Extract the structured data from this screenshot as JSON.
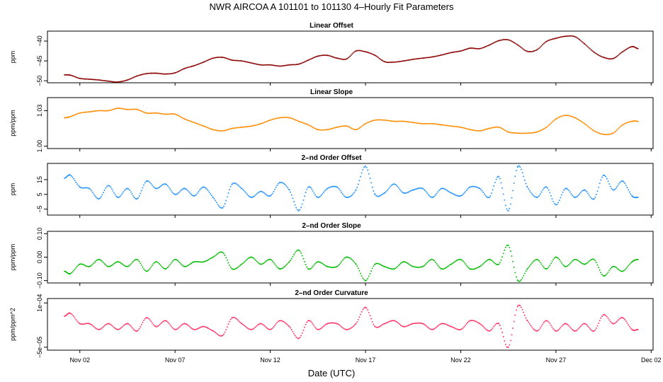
{
  "chart_data": {
    "type": "line",
    "title": "NWR   AIRCOA A   101101 to 101130   4–Hourly Fit Parameters",
    "xlabel": "Date (UTC)",
    "x_ticks": [
      "Nov 02",
      "Nov 07",
      "Nov 12",
      "Nov 17",
      "Nov 22",
      "Nov 27",
      "Dec 02"
    ],
    "x_tick_days": [
      2,
      7,
      12,
      17,
      22,
      27,
      32
    ],
    "xlim": [
      0.3,
      32.1
    ],
    "x_days": [
      1.2,
      1.5,
      2,
      2.5,
      3,
      3.5,
      4,
      4.5,
      5,
      5.5,
      6,
      6.5,
      7,
      7.5,
      8,
      8.5,
      9,
      9.5,
      10,
      10.5,
      11,
      11.5,
      12,
      12.5,
      13,
      13.5,
      14,
      14.5,
      15,
      15.5,
      16,
      16.5,
      17,
      17.5,
      18,
      18.5,
      19,
      19.5,
      20,
      20.5,
      21,
      21.5,
      22,
      22.5,
      23,
      23.5,
      24,
      24.5,
      25,
      25.5,
      26,
      26.5,
      27,
      27.5,
      28,
      28.5,
      29,
      29.5,
      30,
      30.5,
      31,
      31.3
    ],
    "panels": [
      {
        "title": "Linear Offset",
        "ylabel": "ppm",
        "yticks": [
          "−50",
          "−45",
          "−40"
        ],
        "ytick_values": [
          -50,
          -45,
          -40
        ],
        "ylim": [
          -50.5,
          -37.5
        ],
        "color": "#8b0000",
        "values": [
          -48.5,
          -48.6,
          -49.4,
          -49.6,
          -49.8,
          -50.1,
          -50.3,
          -49.8,
          -48.8,
          -48.2,
          -48.1,
          -48.3,
          -48.0,
          -46.9,
          -46.2,
          -45.3,
          -44.3,
          -44.1,
          -44.8,
          -45.0,
          -45.5,
          -46.0,
          -46.0,
          -46.3,
          -46.0,
          -45.8,
          -44.8,
          -43.8,
          -43.6,
          -44.3,
          -44.5,
          -42.5,
          -42.7,
          -43.6,
          -45.2,
          -45.3,
          -45.0,
          -44.6,
          -44.3,
          -44.0,
          -43.5,
          -42.9,
          -42.5,
          -41.8,
          -41.9,
          -41.0,
          -39.9,
          -39.7,
          -41.0,
          -42.6,
          -42.2,
          -40.1,
          -39.3,
          -38.8,
          -38.9,
          -40.7,
          -42.8,
          -44.1,
          -44.4,
          -42.7,
          -41.4,
          -41.9
        ]
      },
      {
        "title": "Linear Slope",
        "ylabel": "ppm/ppm",
        "yticks": [
          "1.00",
          "1.03"
        ],
        "ytick_values": [
          1.0,
          1.03
        ],
        "ylim": [
          0.998,
          1.041
        ],
        "color": "#ff8c00",
        "values": [
          1.024,
          1.025,
          1.028,
          1.029,
          1.03,
          1.03,
          1.032,
          1.031,
          1.031,
          1.028,
          1.028,
          1.027,
          1.027,
          1.023,
          1.02,
          1.017,
          1.014,
          1.013,
          1.015,
          1.016,
          1.017,
          1.019,
          1.022,
          1.024,
          1.024,
          1.021,
          1.018,
          1.014,
          1.014,
          1.016,
          1.017,
          1.014,
          1.019,
          1.022,
          1.022,
          1.021,
          1.021,
          1.02,
          1.019,
          1.019,
          1.018,
          1.017,
          1.016,
          1.014,
          1.013,
          1.015,
          1.016,
          1.012,
          1.011,
          1.011,
          1.012,
          1.016,
          1.023,
          1.026,
          1.024,
          1.019,
          1.013,
          1.01,
          1.011,
          1.018,
          1.021,
          1.021
        ]
      },
      {
        "title": "2–nd Order Offset",
        "ylabel": "ppm",
        "yticks": [
          "−5",
          "5",
          "15"
        ],
        "ytick_values": [
          -5,
          5,
          15
        ],
        "ylim": [
          -9,
          26
        ],
        "color": "#1e90ff",
        "values": [
          16,
          18,
          10,
          9,
          2,
          11,
          3,
          9,
          2,
          14,
          9,
          12,
          5,
          9,
          4,
          10,
          3,
          -4,
          12,
          9,
          3,
          7,
          4,
          13,
          8,
          -6,
          10,
          3,
          9,
          10,
          3,
          8,
          24,
          5,
          6,
          12,
          6,
          8,
          9,
          3,
          9,
          6,
          4,
          10,
          9,
          3,
          17,
          -6,
          24,
          10,
          3,
          10,
          -2,
          9,
          3,
          8,
          2,
          18,
          8,
          14,
          4,
          3
        ]
      },
      {
        "title": "2–nd Order Slope",
        "ylabel": "ppm/ppm",
        "yticks": [
          "−0.10",
          "0.00",
          "0.10"
        ],
        "ytick_values": [
          -0.1,
          0.0,
          0.1
        ],
        "ylim": [
          -0.11,
          0.11
        ],
        "color": "#00bb00",
        "values": [
          -0.06,
          -0.07,
          -0.03,
          -0.04,
          -0.01,
          -0.04,
          -0.02,
          -0.04,
          -0.01,
          -0.06,
          -0.02,
          -0.05,
          -0.01,
          -0.04,
          -0.02,
          -0.02,
          0.0,
          0.02,
          -0.05,
          -0.03,
          0.0,
          -0.03,
          -0.01,
          -0.05,
          -0.02,
          0.03,
          -0.05,
          -0.02,
          -0.04,
          -0.04,
          0.0,
          -0.03,
          -0.1,
          -0.03,
          -0.04,
          -0.05,
          -0.02,
          -0.04,
          -0.04,
          -0.01,
          -0.05,
          -0.03,
          -0.01,
          -0.05,
          -0.04,
          -0.01,
          -0.03,
          0.05,
          -0.1,
          -0.05,
          -0.01,
          -0.05,
          0.0,
          -0.04,
          -0.01,
          -0.03,
          -0.01,
          -0.08,
          -0.04,
          -0.06,
          -0.02,
          -0.01
        ]
      },
      {
        "title": "2–nd Order Curvature",
        "ylabel": "ppm/ppm^2",
        "yticks": [
          "−5e−05",
          "1e−04"
        ],
        "ytick_values": [
          -5e-05,
          0.0001
        ],
        "ylim": [
          -6e-05,
          0.000115
        ],
        "color": "#ff3366",
        "values": [
          5.5e-05,
          6.5e-05,
          3e-05,
          3e-05,
          1e-05,
          3e-05,
          1e-05,
          3e-05,
          5e-06,
          5e-05,
          2e-05,
          4e-05,
          1e-05,
          3e-05,
          1e-05,
          2e-05,
          5e-06,
          -1e-05,
          5e-05,
          3e-05,
          1e-05,
          3e-05,
          1e-05,
          4e-05,
          2e-05,
          -2e-05,
          4e-05,
          1e-05,
          3e-05,
          3e-05,
          1e-05,
          3e-05,
          8.5e-05,
          2e-05,
          3e-05,
          4e-05,
          2e-05,
          3e-05,
          3e-05,
          1e-05,
          3e-05,
          2e-05,
          1e-05,
          4e-05,
          3e-05,
          5e-06,
          3e-05,
          -5e-05,
          9e-05,
          4e-05,
          5e-06,
          4e-05,
          5e-06,
          3e-05,
          5e-06,
          3e-05,
          5e-06,
          6e-05,
          3e-05,
          5e-05,
          1e-05,
          1e-05
        ]
      }
    ]
  }
}
